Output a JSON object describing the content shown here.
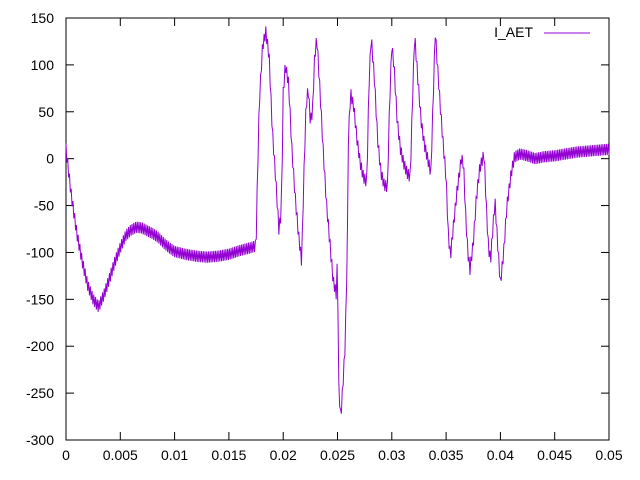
{
  "chart_data": {
    "type": "line",
    "title": "",
    "xlabel": "",
    "ylabel": "",
    "xlim": [
      0,
      0.05
    ],
    "ylim": [
      -300,
      150
    ],
    "grid": false,
    "legend_position": "top-right",
    "x_ticks": [
      {
        "value": 0,
        "label": "0"
      },
      {
        "value": 0.005,
        "label": "0.005"
      },
      {
        "value": 0.01,
        "label": "0.01"
      },
      {
        "value": 0.015,
        "label": "0.015"
      },
      {
        "value": 0.02,
        "label": "0.02"
      },
      {
        "value": 0.025,
        "label": "0.025"
      },
      {
        "value": 0.03,
        "label": "0.03"
      },
      {
        "value": 0.035,
        "label": "0.035"
      },
      {
        "value": 0.04,
        "label": "0.04"
      },
      {
        "value": 0.045,
        "label": "0.045"
      },
      {
        "value": 0.05,
        "label": "0.05"
      }
    ],
    "y_ticks": [
      {
        "value": 150,
        "label": "150"
      },
      {
        "value": 100,
        "label": "100"
      },
      {
        "value": 50,
        "label": "50"
      },
      {
        "value": 0,
        "label": "0"
      },
      {
        "value": -50,
        "label": "-50"
      },
      {
        "value": -100,
        "label": "-100"
      },
      {
        "value": -150,
        "label": "-150"
      },
      {
        "value": -200,
        "label": "-200"
      },
      {
        "value": -250,
        "label": "-250"
      },
      {
        "value": -300,
        "label": "-300"
      }
    ],
    "series": [
      {
        "name": "I_AET",
        "color": "#9400d3",
        "ripple": 6,
        "points": [
          [
            0,
            10
          ],
          [
            0.0005,
            -40
          ],
          [
            0.001,
            -80
          ],
          [
            0.0015,
            -110
          ],
          [
            0.002,
            -135
          ],
          [
            0.0025,
            -150
          ],
          [
            0.003,
            -158
          ],
          [
            0.0035,
            -145
          ],
          [
            0.004,
            -128
          ],
          [
            0.0045,
            -110
          ],
          [
            0.005,
            -95
          ],
          [
            0.0055,
            -82
          ],
          [
            0.006,
            -76
          ],
          [
            0.0065,
            -73
          ],
          [
            0.007,
            -74
          ],
          [
            0.0075,
            -77
          ],
          [
            0.008,
            -80
          ],
          [
            0.0085,
            -84
          ],
          [
            0.009,
            -90
          ],
          [
            0.0095,
            -95
          ],
          [
            0.01,
            -99
          ],
          [
            0.011,
            -102
          ],
          [
            0.012,
            -104
          ],
          [
            0.013,
            -105
          ],
          [
            0.014,
            -104
          ],
          [
            0.015,
            -102
          ],
          [
            0.016,
            -98
          ],
          [
            0.017,
            -95
          ],
          [
            0.0175,
            -93
          ],
          [
            0.01755,
            -60
          ],
          [
            0.0178,
            60
          ],
          [
            0.0181,
            120
          ],
          [
            0.0184,
            135
          ],
          [
            0.0187,
            110
          ],
          [
            0.019,
            30
          ],
          [
            0.0193,
            -20
          ],
          [
            0.0196,
            -75
          ],
          [
            0.0198,
            -60
          ],
          [
            0.0199,
            -10
          ],
          [
            0.02,
            70
          ],
          [
            0.0202,
            100
          ],
          [
            0.0205,
            80
          ],
          [
            0.0208,
            10
          ],
          [
            0.0211,
            -40
          ],
          [
            0.0214,
            -80
          ],
          [
            0.0217,
            -110
          ],
          [
            0.0219,
            -20
          ],
          [
            0.0221,
            55
          ],
          [
            0.0223,
            75
          ],
          [
            0.0225,
            40
          ],
          [
            0.0227,
            50
          ],
          [
            0.0229,
            110
          ],
          [
            0.0231,
            128
          ],
          [
            0.0234,
            70
          ],
          [
            0.0237,
            5
          ],
          [
            0.024,
            -50
          ],
          [
            0.0243,
            -90
          ],
          [
            0.0246,
            -130
          ],
          [
            0.0249,
            -145
          ],
          [
            0.025,
            -100
          ],
          [
            0.0251,
            -240
          ],
          [
            0.0253,
            -277
          ],
          [
            0.0255,
            -240
          ],
          [
            0.0257,
            -200
          ],
          [
            0.0259,
            -100
          ],
          [
            0.026,
            20
          ],
          [
            0.0262,
            70
          ],
          [
            0.0265,
            55
          ],
          [
            0.0268,
            20
          ],
          [
            0.0271,
            -5
          ],
          [
            0.0274,
            -20
          ],
          [
            0.0277,
            -25
          ],
          [
            0.0279,
            80
          ],
          [
            0.0281,
            130
          ],
          [
            0.0284,
            85
          ],
          [
            0.0287,
            20
          ],
          [
            0.029,
            -15
          ],
          [
            0.0293,
            -28
          ],
          [
            0.0296,
            -30
          ],
          [
            0.0298,
            60
          ],
          [
            0.03,
            120
          ],
          [
            0.0302,
            100
          ],
          [
            0.0305,
            40
          ],
          [
            0.0308,
            10
          ],
          [
            0.0311,
            -5
          ],
          [
            0.0314,
            -15
          ],
          [
            0.0317,
            -20
          ],
          [
            0.0319,
            60
          ],
          [
            0.0321,
            132
          ],
          [
            0.0324,
            85
          ],
          [
            0.0327,
            40
          ],
          [
            0.033,
            15
          ],
          [
            0.0333,
            0
          ],
          [
            0.0336,
            -15
          ],
          [
            0.0338,
            60
          ],
          [
            0.034,
            135
          ],
          [
            0.0342,
            100
          ],
          [
            0.0345,
            50
          ],
          [
            0.0347,
            20
          ],
          [
            0.035,
            -20
          ],
          [
            0.0352,
            -80
          ],
          [
            0.0354,
            -105
          ],
          [
            0.0356,
            -80
          ],
          [
            0.036,
            -35
          ],
          [
            0.0364,
            0
          ],
          [
            0.0366,
            -5
          ],
          [
            0.0368,
            -60
          ],
          [
            0.037,
            -100
          ],
          [
            0.0372,
            -118
          ],
          [
            0.0375,
            -90
          ],
          [
            0.0378,
            -40
          ],
          [
            0.0381,
            -10
          ],
          [
            0.0385,
            5
          ],
          [
            0.0387,
            -50
          ],
          [
            0.0389,
            -95
          ],
          [
            0.0391,
            -108
          ],
          [
            0.0393,
            -75
          ],
          [
            0.0395,
            -45
          ],
          [
            0.0398,
            -100
          ],
          [
            0.04,
            -133
          ],
          [
            0.0403,
            -100
          ],
          [
            0.0406,
            -50
          ],
          [
            0.041,
            -15
          ],
          [
            0.0413,
            2
          ],
          [
            0.0418,
            5
          ],
          [
            0.0425,
            3
          ],
          [
            0.0432,
            0
          ],
          [
            0.044,
            2
          ],
          [
            0.045,
            3
          ],
          [
            0.046,
            5
          ],
          [
            0.047,
            7
          ],
          [
            0.048,
            8
          ],
          [
            0.049,
            9
          ],
          [
            0.05,
            10
          ]
        ]
      }
    ]
  }
}
